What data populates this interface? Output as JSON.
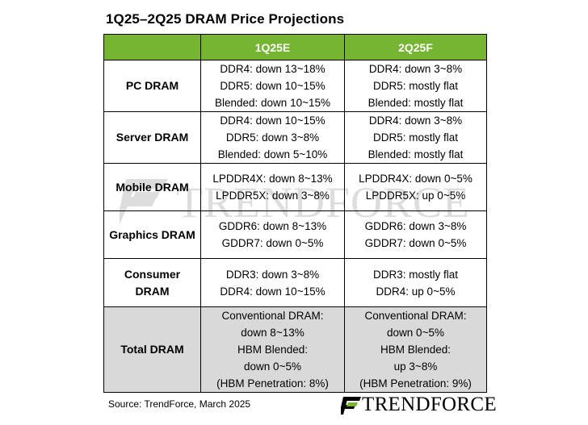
{
  "title": "1Q25–2Q25 DRAM Price Projections",
  "header": {
    "col1": "1Q25E",
    "col2": "2Q25F"
  },
  "rows": [
    {
      "label": [
        "PC DRAM"
      ],
      "q1": [
        "DDR4: down 13~18%",
        "DDR5: down 10~15%",
        "Blended: down 10~15%"
      ],
      "q2": [
        "DDR4: down 3~8%",
        "DDR5: mostly flat",
        "Blended: mostly flat"
      ]
    },
    {
      "label": [
        "Server DRAM"
      ],
      "q1": [
        "DDR4: down 10~15%",
        "DDR5: down 3~8%",
        "Blended: down 5~10%"
      ],
      "q2": [
        "DDR4: down 3~8%",
        "DDR5: mostly flat",
        "Blended: mostly flat"
      ]
    },
    {
      "label": [
        "Mobile DRAM"
      ],
      "q1": [
        "LPDDR4X: down 8~13%",
        "LPDDR5X: down 3~8%"
      ],
      "q2": [
        "LPDDR4X: down 0~5%",
        "LPDDR5X: up 0~5%"
      ]
    },
    {
      "label": [
        "Graphics DRAM"
      ],
      "q1": [
        "GDDR6: down 8~13%",
        "GDDR7: down 0~5%"
      ],
      "q2": [
        "GDDR6: down 3~8%",
        "GDDR7: down 0~5%"
      ]
    },
    {
      "label": [
        "Consumer",
        "DRAM"
      ],
      "q1": [
        "DDR3: down 3~8%",
        "DDR4: down 10~15%"
      ],
      "q2": [
        "DDR3: mostly flat",
        "DDR4: up 0~5%"
      ]
    },
    {
      "label": [
        "Total DRAM"
      ],
      "q1": [
        "Conventional DRAM:",
        "down 8~13%",
        "HBM Blended:",
        "down 0~5%",
        "(HBM Penetration: 8%)"
      ],
      "q2": [
        "Conventional DRAM:",
        "down 0~5%",
        "HBM Blended:",
        "up 3~8%",
        "(HBM Penetration: 9%)"
      ]
    }
  ],
  "watermark": "TRENDFORCE",
  "source": "Source: TrendForce, March 2025",
  "brand": "TRENDFORCE",
  "colors": {
    "header_green": "#76b531",
    "total_gray": "#d9d9d9",
    "logo_green": "#76b531"
  }
}
